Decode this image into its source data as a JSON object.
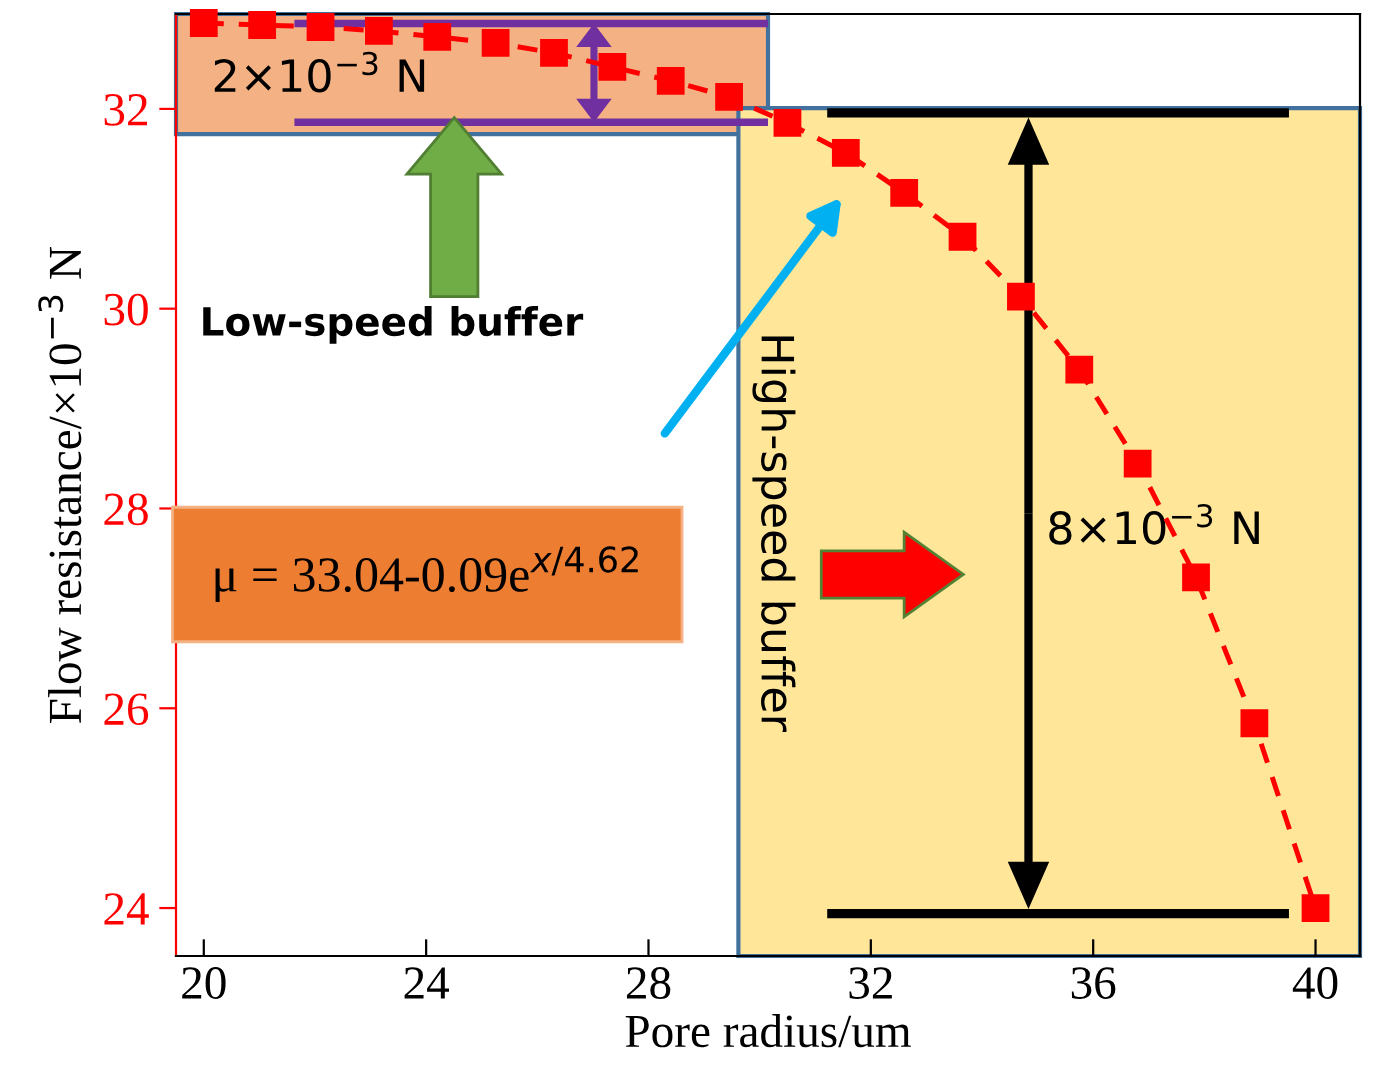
{
  "chart_data": {
    "type": "line",
    "xlabel": "Pore radius/um",
    "ylabel": "Flow resistance/×10$^{−3}$ N",
    "x": [
      20,
      21.05,
      22.1,
      23.15,
      24.2,
      25.25,
      26.3,
      27.35,
      28.4,
      29.45,
      30.5,
      31.55,
      32.6,
      33.65,
      34.7,
      35.75,
      36.8,
      37.85,
      38.9,
      40
    ],
    "series": [
      {
        "color": "#ff0000",
        "values": [
          32.86,
          32.84,
          32.82,
          32.78,
          32.72,
          32.66,
          32.56,
          32.42,
          32.28,
          32.12,
          31.86,
          31.56,
          31.16,
          30.72,
          30.12,
          29.39,
          28.45,
          27.31,
          25.85,
          24.0
        ]
      }
    ],
    "xlim": [
      19.5,
      40.8
    ],
    "ylim": [
      23.52,
      32.95
    ],
    "xticks": [
      20,
      24,
      28,
      32,
      36,
      40
    ],
    "yticks": [
      24,
      26,
      28,
      30,
      32
    ],
    "marker": "square",
    "line_style": "dashed",
    "grid": false,
    "legend": false,
    "annotations": [
      "2×10$^{−3}$ N",
      "Low-speed buffer",
      "μ = 33.04-0.09e$^{x/4.62}$",
      "High-speed buffer",
      "8×10$^{−3}$ N"
    ]
  }
}
